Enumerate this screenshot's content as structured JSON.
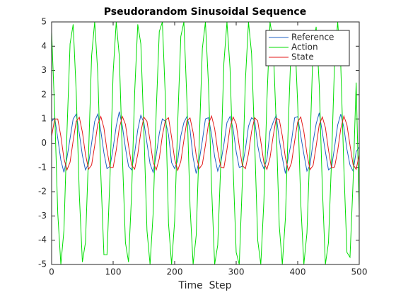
{
  "chart_data": {
    "type": "line",
    "title": "Pseudorandom Sinusoidal Sequence",
    "x_label": "Time  Step",
    "x": [
      0,
      5,
      10,
      15,
      20,
      25,
      30,
      35,
      40,
      45,
      50,
      55,
      60,
      65,
      70,
      75,
      80,
      85,
      90,
      95,
      100,
      105,
      110,
      115,
      120,
      125,
      130,
      135,
      140,
      145,
      150,
      155,
      160,
      165,
      170,
      175,
      180,
      185,
      190,
      195,
      200,
      205,
      210,
      215,
      220,
      225,
      230,
      235,
      240,
      245,
      250,
      255,
      260,
      265,
      270,
      275,
      280,
      285,
      290,
      295,
      300,
      305,
      310,
      315,
      320,
      325,
      330,
      335,
      340,
      345,
      350,
      355,
      360,
      365,
      370,
      375,
      380,
      385,
      390,
      395,
      400,
      405,
      410,
      415,
      420,
      425,
      430,
      435,
      440,
      445,
      450,
      455,
      460,
      465,
      470,
      475,
      480,
      485,
      490,
      495,
      500
    ],
    "series": [
      {
        "name": "Reference",
        "color": "#1f62c4",
        "values": [
          0.9,
          1.05,
          0.2,
          -0.7,
          -1.2,
          -0.6,
          0.2,
          1.0,
          1.2,
          0.4,
          -0.5,
          -1.1,
          -0.85,
          0.0,
          0.9,
          1.2,
          0.5,
          -0.4,
          -1.05,
          -0.95,
          -0.2,
          0.7,
          1.3,
          0.7,
          -0.2,
          -0.95,
          -1.1,
          -0.4,
          0.55,
          1.15,
          0.85,
          0.0,
          -0.85,
          -1.2,
          -0.5,
          0.4,
          1.0,
          0.9,
          0.35,
          -0.8,
          -1.05,
          -0.7,
          0.3,
          0.85,
          1.1,
          0.55,
          -0.6,
          -1.25,
          -0.7,
          0.1,
          1.0,
          1.05,
          0.35,
          -0.55,
          -1.15,
          -0.8,
          -0.05,
          0.85,
          1.1,
          0.6,
          -0.35,
          -1.0,
          -0.95,
          -0.25,
          0.7,
          1.05,
          0.95,
          -0.1,
          -0.75,
          -1.05,
          -0.65,
          0.5,
          0.85,
          1.15,
          0.15,
          -0.6,
          -1.25,
          -0.55,
          0.1,
          1.05,
          1.1,
          0.3,
          -0.45,
          -1.15,
          -0.9,
          0.05,
          0.8,
          1.25,
          0.45,
          -0.35,
          -1.1,
          -1.0,
          -0.15,
          0.75,
          1.2,
          0.65,
          -0.25,
          -0.9,
          -1.15,
          -0.35,
          -0.15
        ]
      },
      {
        "name": "Action",
        "color": "#00dd00",
        "values": [
          4.6,
          1.3,
          -2.9,
          -5,
          -3.6,
          0.5,
          4.1,
          4.9,
          2.1,
          -2.1,
          -4.9,
          -4.1,
          -0.5,
          3.6,
          5,
          2.9,
          -1.3,
          -4.6,
          -4.6,
          -1.3,
          2.9,
          5,
          3.6,
          -0.5,
          -4.1,
          -4.9,
          -2.1,
          2.1,
          4.9,
          4.1,
          0.5,
          -3.6,
          -5,
          -2.9,
          1.3,
          4.6,
          5,
          1.8,
          -3.3,
          -5,
          -3.2,
          0.9,
          4.4,
          5,
          1.7,
          -2.6,
          -5,
          -3.8,
          0.1,
          3.9,
          5,
          2.4,
          -1.8,
          -5,
          -4.2,
          -0.8,
          3.3,
          5,
          3.1,
          -1.0,
          -4.5,
          -5,
          -1.6,
          2.6,
          5,
          3.7,
          0.1,
          -4.0,
          -5,
          -2.4,
          1.8,
          5,
          4.2,
          0.8,
          -3.4,
          -5,
          -3.1,
          1.0,
          4.5,
          4.6,
          1.6,
          -2.5,
          -5,
          -3.7,
          -0.1,
          4.0,
          4.8,
          2.4,
          -1.8,
          -5,
          -4.1,
          -0.7,
          3.4,
          5,
          3.2,
          -1.0,
          -4.5,
          -4.7,
          -1.6,
          2.5,
          -2.8
        ]
      },
      {
        "name": "State",
        "color": "#e31a1a",
        "values": [
          0.29,
          1.0,
          1.0,
          0.29,
          -0.63,
          -1.1,
          -0.78,
          0.1,
          0.9,
          1.07,
          0.46,
          -0.46,
          -1.07,
          -0.9,
          -0.1,
          0.78,
          1.1,
          0.63,
          -0.29,
          -1.0,
          -1.0,
          -0.29,
          0.63,
          1.1,
          0.78,
          -0.1,
          -0.9,
          -1.07,
          -0.46,
          0.46,
          1.07,
          0.9,
          0.1,
          -0.78,
          -1.1,
          -0.63,
          0.31,
          0.95,
          1.05,
          0.25,
          -0.66,
          -1.12,
          -0.75,
          0.12,
          0.93,
          1.04,
          0.44,
          -0.5,
          -1.05,
          -0.87,
          -0.08,
          0.8,
          1.12,
          0.6,
          -0.32,
          -0.98,
          -1.02,
          -0.26,
          0.66,
          1.08,
          0.8,
          -0.12,
          -0.92,
          -1.05,
          -0.44,
          0.48,
          1.05,
          0.92,
          0.08,
          -0.8,
          -1.08,
          -0.6,
          0.27,
          1.02,
          0.98,
          0.3,
          -0.6,
          -1.13,
          -0.8,
          0.08,
          0.88,
          1.08,
          0.48,
          -0.44,
          -1.09,
          -0.92,
          -0.12,
          0.76,
          1.08,
          0.65,
          -0.28,
          -1.02,
          -0.98,
          -0.3,
          0.6,
          1.12,
          0.76,
          -0.08,
          -0.88,
          -1.08,
          -0.48
        ]
      }
    ],
    "xlim": [
      0,
      500
    ],
    "xticks": [
      0,
      100,
      200,
      300,
      400,
      500
    ],
    "ylim": [
      -5,
      5
    ],
    "yticks": [
      -5,
      -4,
      -3,
      -2,
      -1,
      0,
      1,
      2,
      3,
      4,
      5
    ],
    "grid": false,
    "legend": "northeast"
  }
}
